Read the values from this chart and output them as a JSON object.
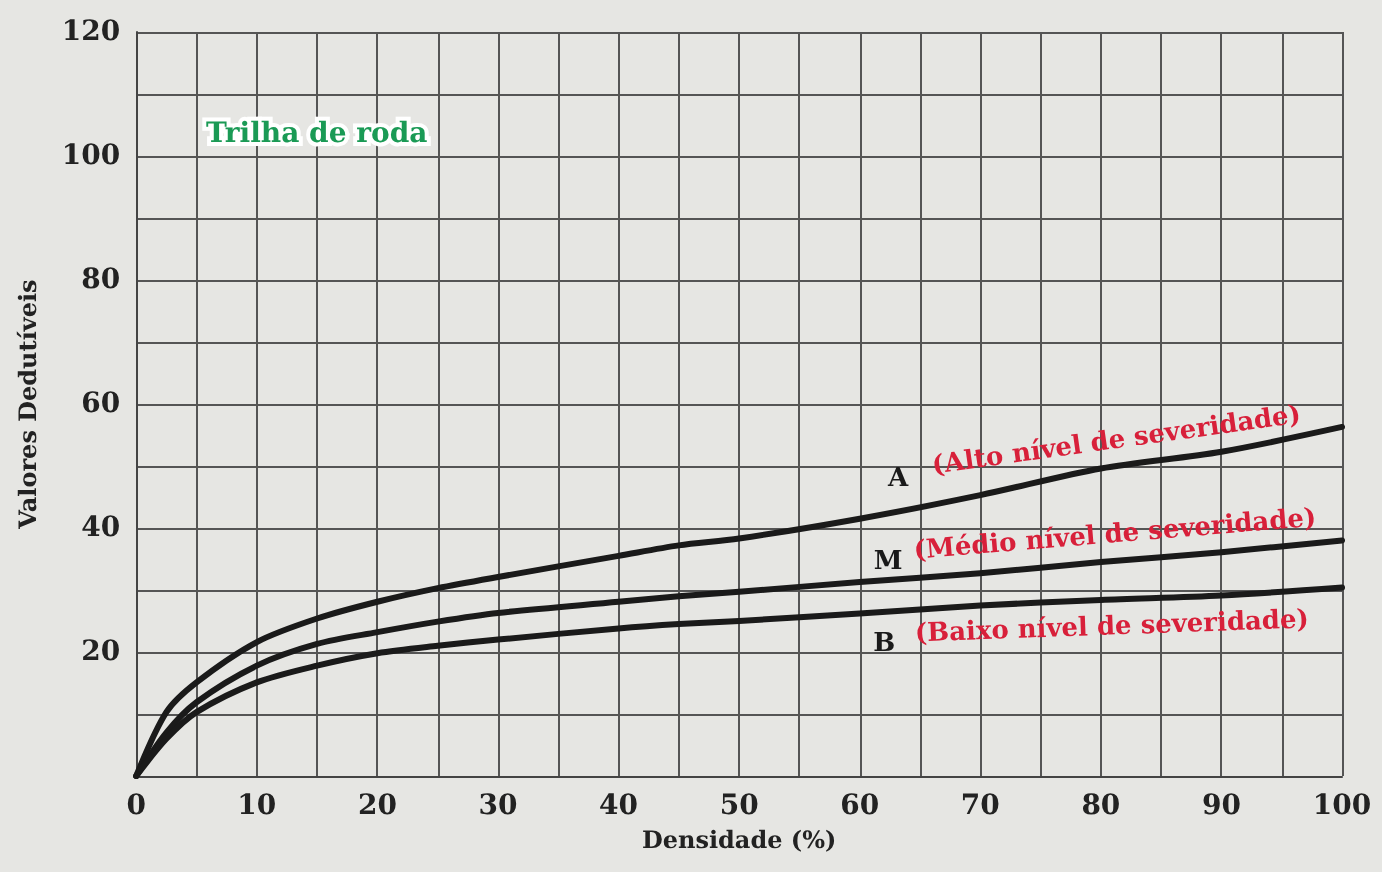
{
  "chart_data": {
    "type": "line",
    "title": "Trilha de roda",
    "xlabel": "Densidade (%)",
    "ylabel": "Valores Dedutíveis",
    "x": [
      0,
      2.5,
      5,
      10,
      15,
      20,
      25,
      30,
      40,
      45,
      50,
      60,
      70,
      80,
      90,
      100
    ],
    "series": [
      {
        "name": "A",
        "color": "#1a1a1a",
        "values": [
          0,
          10.3,
          15.1,
          21.6,
          25.4,
          28.1,
          30.3,
          32.1,
          35.5,
          37.2,
          38.3,
          41.5,
          45.3,
          49.6,
          52.3,
          56.3
        ]
      },
      {
        "name": "M",
        "color": "#1a1a1a",
        "values": [
          0,
          7,
          11.9,
          17.8,
          21.3,
          23.2,
          24.9,
          26.3,
          28.1,
          29,
          29.7,
          31.3,
          32.7,
          34.5,
          36.1,
          38
        ]
      },
      {
        "name": "B",
        "color": "#1a1a1a",
        "values": [
          0,
          6,
          10.3,
          15.1,
          17.8,
          19.8,
          21,
          22,
          23.8,
          24.5,
          25,
          26.2,
          27.5,
          28.4,
          29.1,
          30.4
        ]
      }
    ],
    "annotations": [
      "(Alto nível de severidade)",
      "(Médio nível de severidade)",
      "(Baixo nível de severidade)"
    ],
    "xlim": [
      0,
      100
    ],
    "ylim": [
      0,
      120
    ],
    "xticks": [
      0,
      {
        "value": 5,
        "label": null
      },
      10,
      {
        "value": 15,
        "label": null
      },
      20,
      {
        "value": 25,
        "label": null
      },
      30,
      {
        "value": 35,
        "label": null
      },
      40,
      {
        "value": 45,
        "label": null
      },
      50,
      {
        "value": 55,
        "label": null
      },
      60,
      {
        "value": 65,
        "label": null
      },
      70,
      {
        "value": 75,
        "label": null
      },
      80,
      {
        "value": 85,
        "label": null
      },
      90,
      {
        "value": 95,
        "label": null
      },
      100
    ],
    "yticks": [
      {
        "value": 0,
        "label": null
      },
      {
        "value": 10,
        "label": null
      },
      20,
      {
        "value": 30,
        "label": null
      },
      40,
      {
        "value": 50,
        "label": null
      },
      60,
      {
        "value": 70,
        "label": null
      },
      80,
      {
        "value": 90,
        "label": null
      },
      100,
      {
        "value": 110,
        "label": null
      },
      120
    ],
    "grid": true,
    "legend": false,
    "marker": "none",
    "line_style": "solid"
  }
}
